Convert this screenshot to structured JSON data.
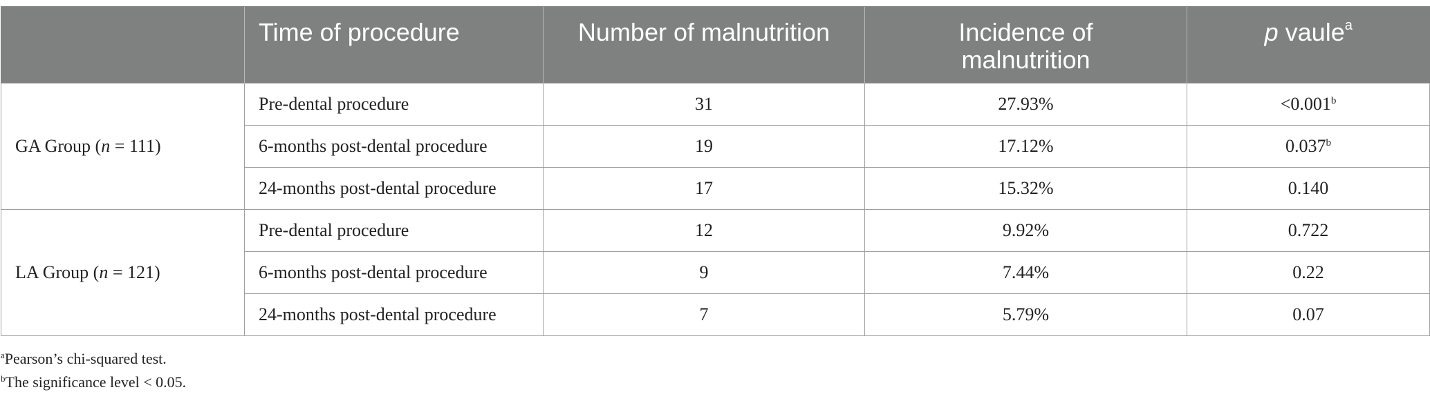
{
  "table": {
    "headers": [
      "",
      "Time of procedure",
      "Number of malnutrition",
      "Incidence of\nmalnutrition",
      {
        "text": "p vaule",
        "sup": "a"
      }
    ],
    "groups": [
      {
        "label_prefix": "GA Group (",
        "label_n": "n",
        "label_suffix": " = 111)",
        "rows": [
          {
            "time": "Pre-dental procedure",
            "number": "31",
            "incidence": "27.93%",
            "p": "<0.001",
            "p_sup": "b"
          },
          {
            "time": "6-months post-dental procedure",
            "number": "19",
            "incidence": "17.12%",
            "p": "0.037",
            "p_sup": "b"
          },
          {
            "time": "24-months post-dental procedure",
            "number": "17",
            "incidence": "15.32%",
            "p": "0.140",
            "p_sup": ""
          }
        ]
      },
      {
        "label_prefix": "LA Group (",
        "label_n": "n",
        "label_suffix": " = 121)",
        "rows": [
          {
            "time": "Pre-dental procedure",
            "number": "12",
            "incidence": "9.92%",
            "p": "0.722",
            "p_sup": ""
          },
          {
            "time": "6-months post-dental procedure",
            "number": "9",
            "incidence": "7.44%",
            "p": "0.22",
            "p_sup": ""
          },
          {
            "time": "24-months post-dental procedure",
            "number": "7",
            "incidence": "5.79%",
            "p": "0.07",
            "p_sup": ""
          }
        ]
      }
    ]
  },
  "footnotes": [
    {
      "mark": "a",
      "text": "Pearson’s chi-squared test."
    },
    {
      "mark": "b",
      "text": "The significance level < 0.05."
    }
  ]
}
